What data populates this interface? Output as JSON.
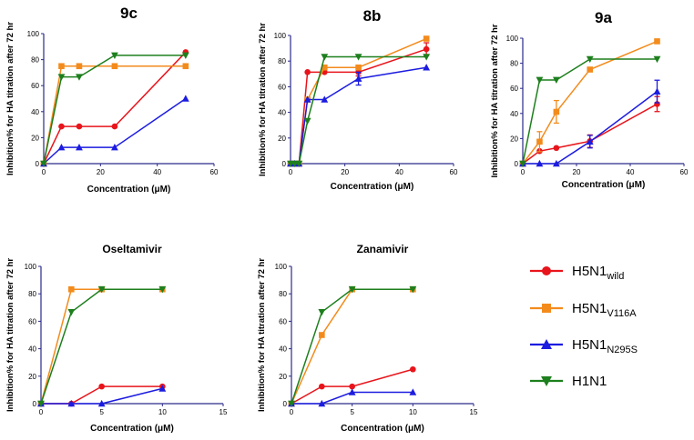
{
  "colors": {
    "H5N1_wild": "#e8141b",
    "H5N1_V116A": "#f38b1c",
    "H5N1_N295S": "#1c1ce0",
    "H1N1": "#1d7f1d",
    "axis": "#2b2b8a"
  },
  "legend": [
    {
      "key": "H5N1_wild",
      "base": "H5N1",
      "sub": "wild",
      "marker": "circle"
    },
    {
      "key": "H5N1_V116A",
      "base": "H5N1",
      "sub": "V116A",
      "marker": "square"
    },
    {
      "key": "H5N1_N295S",
      "base": "H5N1",
      "sub": "N295S",
      "marker": "triangle-up"
    },
    {
      "key": "H1N1",
      "base": "H1N1",
      "sub": "",
      "marker": "triangle-down"
    }
  ],
  "chart_data": [
    {
      "id": "9c",
      "type": "line",
      "title": "9c",
      "xlabel": "Concentration (μM)",
      "ylabel": "Inhibition% for HA titration after 72 hr",
      "xlim": [
        0,
        60
      ],
      "ylim": [
        0,
        100
      ],
      "xticks": [
        0,
        20,
        40,
        60
      ],
      "yticks": [
        0,
        20,
        40,
        60,
        80,
        100
      ],
      "series": [
        {
          "name": "H5N1wild",
          "key": "H5N1_wild",
          "marker": "circle",
          "x": [
            0,
            6.25,
            12.5,
            25,
            50
          ],
          "y": [
            0,
            28.6,
            28.6,
            28.6,
            85.7
          ]
        },
        {
          "name": "H5N1V116A",
          "key": "H5N1_V116A",
          "marker": "square",
          "x": [
            0,
            6.25,
            12.5,
            25,
            50
          ],
          "y": [
            0,
            75,
            75,
            75,
            75
          ]
        },
        {
          "name": "H5N1N295S",
          "key": "H5N1_N295S",
          "marker": "triangle-up",
          "x": [
            0,
            6.25,
            12.5,
            25,
            50
          ],
          "y": [
            0,
            12.5,
            12.5,
            12.5,
            50
          ]
        },
        {
          "name": "H1N1",
          "key": "H1N1",
          "marker": "triangle-down",
          "x": [
            0,
            6.25,
            12.5,
            25,
            50
          ],
          "y": [
            0,
            66.7,
            66.7,
            83.3,
            83.3
          ]
        }
      ]
    },
    {
      "id": "8b",
      "type": "line",
      "title": "8b",
      "xlabel": "Concentration (μM)",
      "ylabel": "Inhibition% for HA titration after 72 hr",
      "xlim": [
        0,
        60
      ],
      "ylim": [
        0,
        100
      ],
      "xticks": [
        0,
        20,
        40,
        60
      ],
      "yticks": [
        0,
        20,
        40,
        60,
        80,
        100
      ],
      "series": [
        {
          "name": "H5N1wild",
          "key": "H5N1_wild",
          "marker": "circle",
          "x": [
            0,
            1.56,
            3.12,
            6.25,
            12.5,
            25,
            50
          ],
          "y": [
            0,
            0,
            0,
            71.4,
            71.4,
            71.4,
            89.3
          ],
          "err": [
            0,
            0,
            0,
            0,
            0,
            3,
            5
          ]
        },
        {
          "name": "H5N1V116A",
          "key": "H5N1_V116A",
          "marker": "square",
          "x": [
            0,
            1.56,
            3.12,
            6.25,
            12.5,
            25,
            50
          ],
          "y": [
            0,
            0,
            0,
            50,
            75,
            75,
            97.5
          ]
        },
        {
          "name": "H5N1N295S",
          "key": "H5N1_N295S",
          "marker": "triangle-up",
          "x": [
            0,
            1.56,
            3.12,
            6.25,
            12.5,
            25,
            50
          ],
          "y": [
            0,
            0,
            0,
            50,
            50,
            66.3,
            75
          ],
          "err": [
            0,
            0,
            0,
            0,
            0,
            5,
            0
          ]
        },
        {
          "name": "H1N1",
          "key": "H1N1",
          "marker": "triangle-down",
          "x": [
            0,
            1.56,
            3.12,
            6.25,
            12.5,
            25,
            50
          ],
          "y": [
            0,
            0,
            0,
            33.3,
            83.3,
            83.3,
            83.3
          ]
        }
      ]
    },
    {
      "id": "9a",
      "type": "line",
      "title": "9a",
      "xlabel": "Concentration (μM)",
      "ylabel": "Inhibition% for HA titration after 72 hr",
      "xlim": [
        0,
        60
      ],
      "ylim": [
        0,
        100
      ],
      "xticks": [
        0,
        20,
        40,
        60
      ],
      "yticks": [
        0,
        20,
        40,
        60,
        80,
        100
      ],
      "series": [
        {
          "name": "H5N1wild",
          "key": "H5N1_wild",
          "marker": "circle",
          "x": [
            0,
            6.25,
            12.5,
            25,
            50
          ],
          "y": [
            0,
            10,
            12.5,
            17.9,
            47.5
          ],
          "err": [
            0,
            0,
            0,
            5,
            6
          ]
        },
        {
          "name": "H5N1V116A",
          "key": "H5N1_V116A",
          "marker": "square",
          "x": [
            0,
            6.25,
            12.5,
            25,
            50
          ],
          "y": [
            0,
            17.5,
            41.3,
            75,
            97.5
          ],
          "err": [
            0,
            8,
            9,
            0,
            0
          ]
        },
        {
          "name": "H5N1N295S",
          "key": "H5N1_N295S",
          "marker": "triangle-up",
          "x": [
            0,
            6.25,
            12.5,
            25,
            50
          ],
          "y": [
            0,
            0,
            0,
            17.5,
            57.5
          ],
          "err": [
            0,
            0,
            0,
            5,
            9
          ]
        },
        {
          "name": "H1N1",
          "key": "H1N1",
          "marker": "triangle-down",
          "x": [
            0,
            6.25,
            12.5,
            25,
            50
          ],
          "y": [
            0,
            66.7,
            66.7,
            83.3,
            83.3
          ]
        }
      ]
    },
    {
      "id": "oseltamivir",
      "type": "line",
      "title": "Oseltamivir",
      "xlabel": "Concentration (μM)",
      "ylabel": "Inhibition% for HA titration after 72 hr",
      "xlim": [
        0,
        15
      ],
      "ylim": [
        0,
        100
      ],
      "xticks": [
        0,
        5,
        10,
        15
      ],
      "yticks": [
        0,
        20,
        40,
        60,
        80,
        100
      ],
      "series": [
        {
          "name": "H5N1wild",
          "key": "H5N1_wild",
          "marker": "circle",
          "x": [
            0,
            2.5,
            5,
            10
          ],
          "y": [
            0,
            0,
            12.5,
            12.5
          ]
        },
        {
          "name": "H5N1V116A",
          "key": "H5N1_V116A",
          "marker": "square",
          "x": [
            0,
            2.5,
            5,
            10
          ],
          "y": [
            0,
            83.3,
            83.3,
            83.3
          ]
        },
        {
          "name": "H5N1N295S",
          "key": "H5N1_N295S",
          "marker": "triangle-up",
          "x": [
            0,
            2.5,
            5,
            10
          ],
          "y": [
            0,
            0,
            0,
            11
          ]
        },
        {
          "name": "H1N1",
          "key": "H1N1",
          "marker": "triangle-down",
          "x": [
            0,
            2.5,
            5,
            10
          ],
          "y": [
            0,
            66.7,
            83.3,
            83.3
          ]
        }
      ]
    },
    {
      "id": "zanamivir",
      "type": "line",
      "title": "Zanamivir",
      "xlabel": "Concentration (μM)",
      "ylabel": "Inhibition% for HA titration after 72 hr",
      "xlim": [
        0,
        15
      ],
      "ylim": [
        0,
        100
      ],
      "xticks": [
        0,
        5,
        10,
        15
      ],
      "yticks": [
        0,
        20,
        40,
        60,
        80,
        100
      ],
      "series": [
        {
          "name": "H5N1wild",
          "key": "H5N1_wild",
          "marker": "circle",
          "x": [
            0,
            2.5,
            5,
            10
          ],
          "y": [
            0,
            12.5,
            12.5,
            25
          ]
        },
        {
          "name": "H5N1V116A",
          "key": "H5N1_V116A",
          "marker": "square",
          "x": [
            0,
            2.5,
            5,
            10
          ],
          "y": [
            0,
            50,
            83.3,
            83.3
          ]
        },
        {
          "name": "H5N1N295S",
          "key": "H5N1_N295S",
          "marker": "triangle-up",
          "x": [
            0,
            2.5,
            5,
            10
          ],
          "y": [
            0,
            0,
            8.3,
            8.3
          ]
        },
        {
          "name": "H1N1",
          "key": "H1N1",
          "marker": "triangle-down",
          "x": [
            0,
            2.5,
            5,
            10
          ],
          "y": [
            0,
            66.7,
            83.3,
            83.3
          ]
        }
      ]
    }
  ]
}
